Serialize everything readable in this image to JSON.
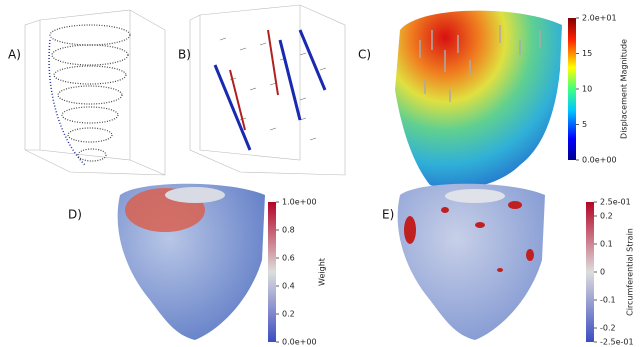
{
  "panels": [
    {
      "label": "A)"
    },
    {
      "label": "B)"
    },
    {
      "label": "C)",
      "colorbar": {
        "title": "Displacement Magnitude",
        "lim": [
          0,
          20
        ],
        "ticks": [
          {
            "value": 20,
            "label": "2.0e+01"
          },
          15,
          10,
          5,
          {
            "value": 0,
            "label": "0.0e+00"
          }
        ]
      }
    },
    {
      "label": "D)",
      "colorbar": {
        "title": "Weight",
        "lim": [
          0,
          1
        ],
        "ticks": [
          {
            "value": 1,
            "label": "1.0e+00"
          },
          0.8,
          0.6,
          0.4,
          0.2,
          {
            "value": 0,
            "label": "0.0e+00"
          }
        ]
      }
    },
    {
      "label": "E)",
      "colorbar": {
        "title": "Circumferential Strain",
        "lim": [
          -0.25,
          0.25
        ],
        "ticks": [
          {
            "value": 0.25,
            "label": "2.5e-01"
          },
          0.2,
          0.1,
          0,
          -0.1,
          -0.2,
          {
            "value": -0.25,
            "label": "-2.5e-01"
          }
        ]
      }
    }
  ]
}
